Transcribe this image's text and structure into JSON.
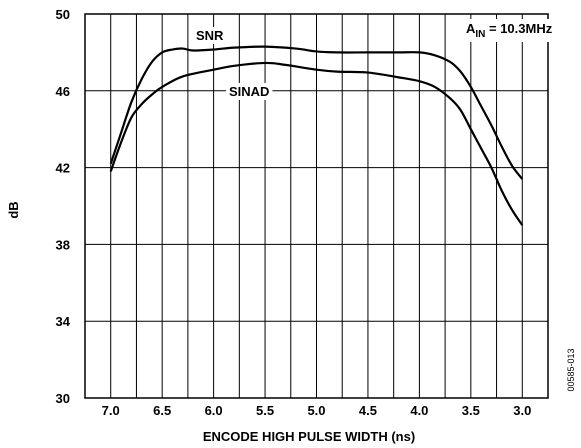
{
  "chart_data": {
    "type": "line",
    "xlabel": "ENCODE HIGH PULSE WIDTH (ns)",
    "ylabel": "dB",
    "xlim": [
      7.25,
      2.75
    ],
    "ylim": [
      30,
      50
    ],
    "x_ticks": [
      "7.0",
      "6.5",
      "6.0",
      "5.5",
      "5.0",
      "4.5",
      "4.0",
      "3.5",
      "3.0"
    ],
    "y_ticks": [
      "30",
      "34",
      "38",
      "42",
      "46",
      "50"
    ],
    "grid": true,
    "annotation": {
      "main": "A",
      "sub": "IN",
      "rest": " = 10.3MHz"
    },
    "figure_code": "00585-013",
    "series": [
      {
        "name": "SNR",
        "x": [
          7.0,
          6.9,
          6.8,
          6.7,
          6.6,
          6.5,
          6.4,
          6.3,
          6.2,
          6.0,
          5.8,
          5.5,
          5.2,
          5.0,
          4.8,
          4.5,
          4.2,
          4.0,
          3.85,
          3.7,
          3.6,
          3.5,
          3.4,
          3.3,
          3.2,
          3.1,
          3.0
        ],
        "y": [
          42.2,
          43.8,
          45.4,
          46.6,
          47.5,
          48.0,
          48.15,
          48.2,
          48.1,
          48.15,
          48.25,
          48.3,
          48.2,
          48.05,
          48.0,
          48.0,
          48.0,
          48.0,
          47.85,
          47.5,
          47.0,
          46.2,
          45.2,
          44.2,
          43.1,
          42.1,
          41.4
        ]
      },
      {
        "name": "SINAD",
        "x": [
          7.0,
          6.9,
          6.8,
          6.7,
          6.6,
          6.5,
          6.3,
          6.0,
          5.8,
          5.5,
          5.3,
          5.0,
          4.8,
          4.5,
          4.2,
          4.0,
          3.85,
          3.7,
          3.6,
          3.5,
          3.4,
          3.3,
          3.2,
          3.1,
          3.0
        ],
        "y": [
          41.8,
          43.3,
          44.6,
          45.3,
          45.8,
          46.2,
          46.75,
          47.1,
          47.3,
          47.45,
          47.35,
          47.1,
          47.0,
          46.95,
          46.7,
          46.5,
          46.2,
          45.6,
          45.0,
          44.0,
          43.0,
          42.0,
          40.8,
          39.8,
          39.0
        ]
      }
    ]
  }
}
